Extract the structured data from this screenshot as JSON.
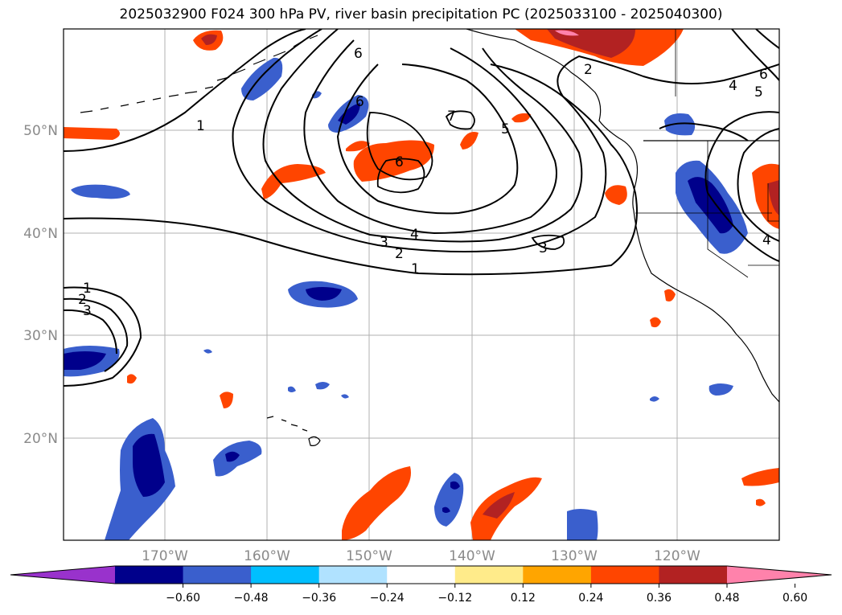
{
  "title": "2025032900 F024 300 hPa PV, river basin precipitation PC (2025033100 - 2025040300)",
  "lat_labels": [
    "50°N",
    "40°N",
    "30°N",
    "20°N"
  ],
  "lon_labels": [
    "170°W",
    "160°W",
    "150°W",
    "140°W",
    "130°W",
    "120°W"
  ],
  "contour_labels": {
    "c1": "1",
    "c2": "2",
    "c3": "3",
    "c4": "4",
    "c5": "5",
    "c6": "6",
    "c7": "7"
  },
  "colorbar": {
    "ticks": [
      "−0.60",
      "−0.48",
      "−0.36",
      "−0.24",
      "−0.12",
      "0.12",
      "0.24",
      "0.36",
      "0.48",
      "0.60"
    ],
    "colors": [
      "#9932cc",
      "#00008b",
      "#3a5fcd",
      "#00bfff",
      "#b0e2ff",
      "#ffffff",
      "#ffeb8a",
      "#ffa500",
      "#ff4500",
      "#b22222",
      "#ff82ab"
    ]
  }
}
